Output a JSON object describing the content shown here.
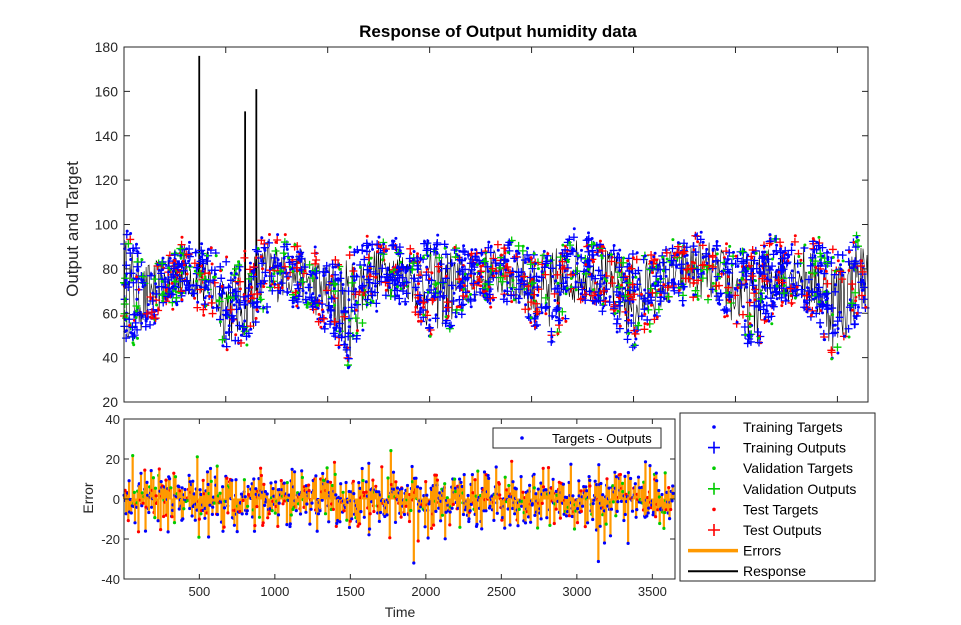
{
  "chart_data": [
    {
      "type": "line",
      "title": "Response of Output humidity data",
      "xlabel": "",
      "ylabel": "Output and Target",
      "xlim": [
        1,
        3650
      ],
      "ylim": [
        20,
        180
      ],
      "yticks": [
        20,
        40,
        60,
        80,
        100,
        120,
        140,
        160,
        180
      ],
      "grid": false,
      "envelope": {
        "x": [
          1,
          100,
          200,
          300,
          400,
          500,
          600,
          700,
          800,
          900,
          1000,
          1100,
          1200,
          1300,
          1400,
          1500,
          1600,
          1700,
          1800,
          1900,
          2000,
          2100,
          2200,
          2300,
          2400,
          2500,
          2600,
          2700,
          2800,
          2900,
          3000,
          3100,
          3200,
          3300,
          3400,
          3500,
          3600,
          3650
        ],
        "upper": [
          99,
          85,
          86,
          94,
          91,
          86,
          87,
          97,
          93,
          89,
          86,
          88,
          94,
          93,
          90,
          94,
          92,
          88,
          91,
          94,
          87,
          92,
          96,
          94,
          90,
          88,
          87,
          92,
          96,
          93,
          89,
          90,
          96,
          93,
          94,
          89,
          97,
          92
        ],
        "lower": [
          45,
          50,
          62,
          66,
          58,
          43,
          44,
          60,
          66,
          62,
          50,
          35,
          62,
          66,
          64,
          48,
          52,
          62,
          66,
          64,
          55,
          37,
          62,
          64,
          54,
          42,
          56,
          64,
          66,
          62,
          50,
          42,
          62,
          64,
          54,
          36,
          56,
          60
        ]
      },
      "series": [
        {
          "name": "Training Targets",
          "color": "#0000ff",
          "marker": "dot"
        },
        {
          "name": "Training Outputs",
          "color": "#0000ff",
          "marker": "plus"
        },
        {
          "name": "Validation Targets",
          "color": "#00cc00",
          "marker": "dot"
        },
        {
          "name": "Validation Outputs",
          "color": "#00cc00",
          "marker": "plus"
        },
        {
          "name": "Test Targets",
          "color": "#ff0000",
          "marker": "dot"
        },
        {
          "name": "Test Outputs",
          "color": "#ff0000",
          "marker": "plus"
        },
        {
          "name": "Errors",
          "color": "#ff9900",
          "marker": "line"
        },
        {
          "name": "Response",
          "color": "#000000",
          "marker": "line"
        }
      ],
      "response_spikes": [
        {
          "x": 370,
          "y": 176
        },
        {
          "x": 595,
          "y": 151
        },
        {
          "x": 650,
          "y": 161
        }
      ]
    },
    {
      "type": "line",
      "title": "",
      "xlabel": "Time",
      "ylabel": "Error",
      "xlim": [
        1,
        3650
      ],
      "ylim": [
        -40,
        40
      ],
      "xticks": [
        500,
        1000,
        1500,
        2000,
        2500,
        3000,
        3500
      ],
      "yticks": [
        -40,
        -20,
        0,
        20,
        40
      ],
      "legend": {
        "entries": [
          "Targets - Outputs"
        ],
        "placement": "top-right"
      },
      "error_range": [
        -32,
        27
      ]
    }
  ],
  "legend": {
    "placement": "right",
    "entries": [
      {
        "label": "Training Targets",
        "color": "#0000ff",
        "marker": "dot"
      },
      {
        "label": "Training Outputs",
        "color": "#0000ff",
        "marker": "plus"
      },
      {
        "label": "Validation Targets",
        "color": "#00cc00",
        "marker": "dot"
      },
      {
        "label": "Validation Outputs",
        "color": "#00cc00",
        "marker": "plus"
      },
      {
        "label": "Test Targets",
        "color": "#ff0000",
        "marker": "dot"
      },
      {
        "label": "Test Outputs",
        "color": "#ff0000",
        "marker": "plus"
      },
      {
        "label": "Errors",
        "color": "#ff9900",
        "marker": "line"
      },
      {
        "label": "Response",
        "color": "#000000",
        "marker": "line"
      }
    ]
  }
}
